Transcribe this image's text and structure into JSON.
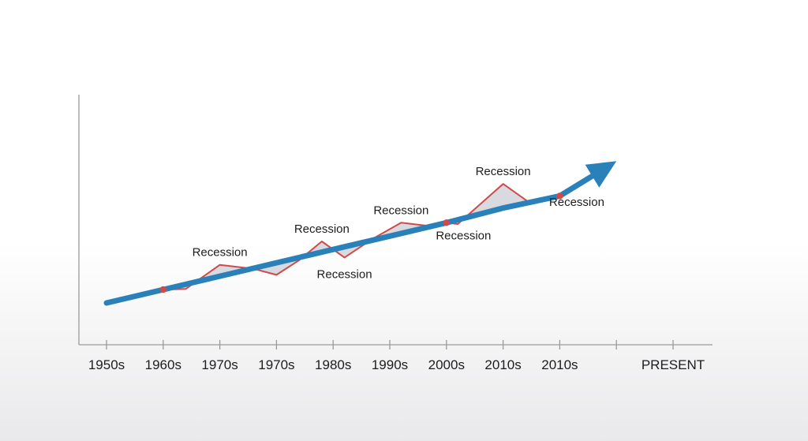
{
  "chart_data": {
    "type": "line",
    "title": "",
    "xlabel": "",
    "ylabel": "",
    "categories": [
      "1950s",
      "1960s",
      "1970s",
      "1970s",
      "1980s",
      "1990s",
      "2000s",
      "2010s",
      "2010s",
      "PRESENT"
    ],
    "series": [
      {
        "role": "trend",
        "color": "#2a80b9",
        "values": [
          0.0,
          1.0,
          2.0,
          3.0,
          4.0,
          5.0,
          6.0,
          7.1,
          8.0,
          10.6
        ]
      },
      {
        "role": "actual",
        "color": "#d04a4a",
        "x": [
          1.0,
          1.4,
          2.0,
          2.6,
          3.0,
          3.4,
          3.8,
          4.2,
          4.7,
          5.2,
          5.7,
          6.0,
          6.2,
          7.0,
          7.5,
          8.0
        ],
        "values": [
          1.0,
          1.05,
          2.85,
          2.55,
          2.1,
          3.2,
          4.6,
          3.4,
          4.8,
          6.0,
          5.75,
          6.0,
          5.9,
          8.9,
          7.4,
          8.0
        ]
      }
    ],
    "annotations": [
      {
        "text": "Recession",
        "x": 2.0,
        "position": "above"
      },
      {
        "text": "Recession",
        "x": 3.8,
        "position": "above"
      },
      {
        "text": "Recession",
        "x": 4.2,
        "position": "below"
      },
      {
        "text": "Recession",
        "x": 5.2,
        "position": "above"
      },
      {
        "text": "Recession",
        "x": 6.3,
        "position": "below"
      },
      {
        "text": "Recession",
        "x": 7.0,
        "position": "above"
      },
      {
        "text": "Recession",
        "x": 8.3,
        "position": "below"
      }
    ],
    "markers": [
      1.0,
      6.0,
      8.0
    ],
    "shaded_areas": "between actual and trend",
    "arrow": "on trend line end",
    "grid": false,
    "legend": "none"
  },
  "colors": {
    "trend": "#2a80b9",
    "actual": "#d04a4a",
    "fill": "#d2d4d9",
    "axis": "#9a9a9a",
    "text": "#1d1d1f"
  }
}
